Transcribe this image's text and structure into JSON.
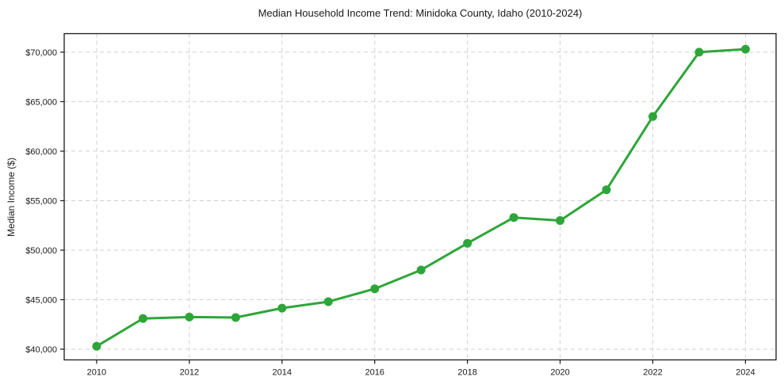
{
  "chart_data": {
    "type": "line",
    "title": "Median Household Income Trend: Minidoka County, Idaho (2010-2024)",
    "xlabel": "",
    "ylabel": "Median Income ($)",
    "x": [
      2010,
      2011,
      2012,
      2013,
      2014,
      2015,
      2016,
      2017,
      2018,
      2019,
      2020,
      2021,
      2022,
      2023,
      2024
    ],
    "series": [
      {
        "values": [
          40300,
          43100,
          43250,
          43200,
          44150,
          44800,
          46100,
          48000,
          50700,
          53300,
          53000,
          56100,
          63500,
          70000,
          70300
        ],
        "color": "#2da639",
        "marker": "circle",
        "marker_radius": 5.5,
        "line_width": 3
      }
    ],
    "xlim": [
      2009.3,
      2024.66
    ],
    "ylim": [
      38920,
      71870
    ],
    "x_ticks": {
      "values": [
        2010,
        2012,
        2014,
        2016,
        2018,
        2020,
        2022,
        2024
      ],
      "labels": [
        "2010",
        "2012",
        "2014",
        "2016",
        "2018",
        "2020",
        "2022",
        "2024"
      ]
    },
    "y_ticks": {
      "values": [
        40000,
        45000,
        50000,
        55000,
        60000,
        65000,
        70000
      ],
      "labels": [
        "$40,000",
        "$45,000",
        "$50,000",
        "$55,000",
        "$60,000",
        "$65,000",
        "$70,000"
      ]
    },
    "grid": true,
    "grid_style": "dashed",
    "grid_color": "#cfcfcf",
    "axis_color": "#1a1a1a",
    "legend": "none",
    "background": "#ffffff"
  }
}
